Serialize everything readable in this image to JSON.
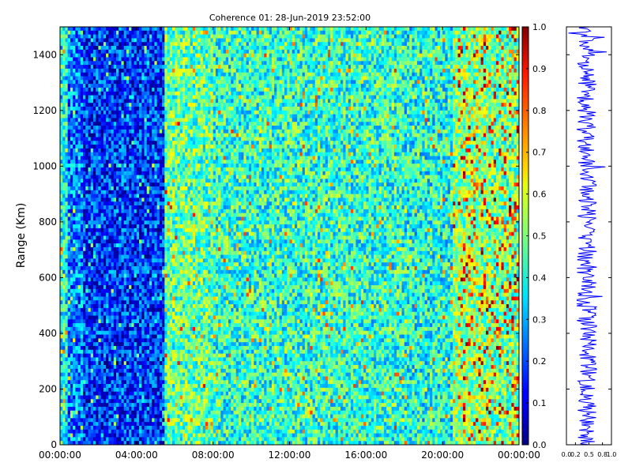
{
  "chart_data": [
    {
      "type": "heatmap",
      "title": "Coherence 01: 28-Jun-2019 23:52:00",
      "xlabel": "",
      "ylabel": "Range (Km)",
      "x_ticks": [
        "00:00:00",
        "04:00:00",
        "08:00:00",
        "12:00:00",
        "16:00:00",
        "20:00:00",
        "00:00:00"
      ],
      "x_range_hours": [
        0,
        24
      ],
      "y_ticks": [
        0,
        200,
        400,
        600,
        800,
        1000,
        1200,
        1400
      ],
      "ylim": [
        0,
        1500
      ],
      "colorbar": {
        "colormap": "jet",
        "range": [
          0.0,
          1.0
        ],
        "ticks": [
          "0.0",
          "0.1",
          "0.2",
          "0.3",
          "0.4",
          "0.5",
          "0.6",
          "0.7",
          "0.8",
          "0.9",
          "1.0"
        ]
      },
      "grid": false,
      "approx_time_profile": [
        {
          "start_hour": 0.0,
          "end_hour": 0.4,
          "mean_coherence": 0.38
        },
        {
          "start_hour": 0.4,
          "end_hour": 1.2,
          "mean_coherence": 0.25
        },
        {
          "start_hour": 1.2,
          "end_hour": 5.5,
          "mean_coherence": 0.17
        },
        {
          "start_hour": 5.5,
          "end_hour": 8.0,
          "mean_coherence": 0.47
        },
        {
          "start_hour": 8.0,
          "end_hour": 18.0,
          "mean_coherence": 0.42
        },
        {
          "start_hour": 18.0,
          "end_hour": 20.5,
          "mean_coherence": 0.4
        },
        {
          "start_hour": 20.5,
          "end_hour": 22.5,
          "mean_coherence": 0.52
        },
        {
          "start_hour": 22.5,
          "end_hour": 24.0,
          "mean_coherence": 0.48
        }
      ]
    },
    {
      "type": "line",
      "xlabel": "",
      "ylabel": "",
      "xlim": [
        0.0,
        1.0
      ],
      "x_ticks": [
        "0.0",
        "0.2",
        "0.5",
        "0.8",
        "1.0"
      ],
      "ylim": [
        0,
        1500
      ],
      "series": [
        {
          "profile_mean": 0.45,
          "profile_spread": 0.22
        }
      ]
    }
  ]
}
